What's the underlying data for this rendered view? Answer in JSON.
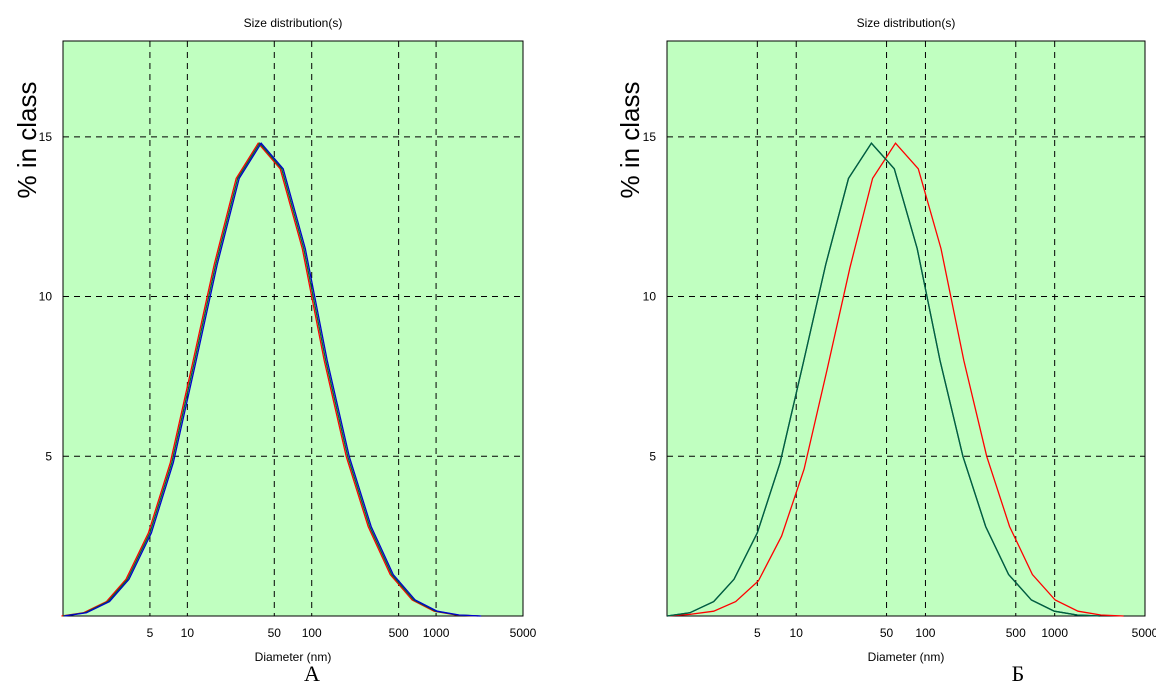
{
  "chart_data": [
    {
      "type": "line",
      "panel_label": "А",
      "title": "Size distribution(s)",
      "xlabel": "Diameter (nm)",
      "ylabel": "% in class",
      "xscale": "log",
      "xlim": [
        1,
        5000
      ],
      "ylim": [
        0,
        18
      ],
      "x_ticks": [
        5,
        10,
        50,
        100,
        500,
        1000,
        5000
      ],
      "y_ticks": [
        5,
        10,
        15
      ],
      "x_grid": [
        5,
        10,
        50,
        100,
        500,
        1000
      ],
      "y_grid": [
        5,
        10,
        15
      ],
      "grid": true,
      "background_color": "#c0ffc0",
      "series": [
        {
          "color": "#ff0000",
          "x": [
            1,
            1.5,
            2.3,
            3.3,
            5,
            7.5,
            11.3,
            16.9,
            25.4,
            38.2,
            57.4,
            86.3,
            129.6,
            194.8,
            292.7,
            440,
            661,
            993,
            1493,
            2243
          ],
          "y": [
            0.0,
            0.1,
            0.45,
            1.15,
            2.6,
            4.8,
            7.9,
            11.0,
            13.7,
            14.8,
            14.0,
            11.5,
            8.0,
            5.0,
            2.8,
            1.3,
            0.5,
            0.15,
            0.03,
            0.0
          ]
        },
        {
          "color": "#006633",
          "x": [
            1,
            1.5,
            2.3,
            3.3,
            5,
            7.5,
            11.3,
            16.9,
            25.4,
            38.2,
            57.4,
            86.3,
            129.6,
            194.8,
            292.7,
            440,
            661,
            993,
            1493,
            2243
          ],
          "y": [
            0.0,
            0.1,
            0.45,
            1.15,
            2.6,
            4.8,
            7.9,
            11.0,
            13.7,
            14.8,
            14.0,
            11.5,
            8.0,
            5.0,
            2.8,
            1.3,
            0.5,
            0.15,
            0.03,
            0.0
          ]
        },
        {
          "color": "#0000cc",
          "x": [
            1,
            1.5,
            2.3,
            3.3,
            5,
            7.5,
            11.3,
            16.9,
            25.4,
            38.2,
            57.4,
            86.3,
            129.6,
            194.8,
            292.7,
            440,
            661,
            993,
            1493,
            2243
          ],
          "y": [
            0.0,
            0.1,
            0.45,
            1.15,
            2.6,
            4.8,
            7.9,
            11.0,
            13.7,
            14.8,
            14.0,
            11.5,
            8.0,
            5.0,
            2.8,
            1.3,
            0.5,
            0.15,
            0.03,
            0.0
          ]
        }
      ]
    },
    {
      "type": "line",
      "panel_label": "Б",
      "title": "Size distribution(s)",
      "xlabel": "Diameter (nm)",
      "ylabel": "% in class",
      "xscale": "log",
      "xlim": [
        1,
        5000
      ],
      "ylim": [
        0,
        18
      ],
      "x_ticks": [
        5,
        10,
        50,
        100,
        500,
        1000,
        5000
      ],
      "y_ticks": [
        5,
        10,
        15
      ],
      "x_grid": [
        5,
        10,
        50,
        100,
        500,
        1000
      ],
      "y_grid": [
        5,
        10,
        15
      ],
      "grid": true,
      "background_color": "#c0ffc0",
      "series": [
        {
          "color": "#ff0000",
          "x": [
            1,
            1.5,
            2.3,
            3.4,
            5.1,
            7.7,
            11.5,
            17.3,
            26,
            39,
            58.6,
            88,
            132,
            198,
            298,
            448,
            672,
            1009,
            1515,
            2274,
            3413
          ],
          "y": [
            0.0,
            0.05,
            0.15,
            0.45,
            1.1,
            2.5,
            4.6,
            7.7,
            10.9,
            13.7,
            14.8,
            14.0,
            11.5,
            8.0,
            5.0,
            2.8,
            1.3,
            0.5,
            0.15,
            0.03,
            0.0
          ]
        },
        {
          "color": "#0000cc",
          "x": [
            1,
            1.5,
            2.3,
            3.3,
            5,
            7.5,
            11.3,
            16.9,
            25.4,
            38.2,
            57.4,
            86.3,
            129.6,
            194.8,
            292.7,
            440,
            661,
            993,
            1493,
            2243
          ],
          "y": [
            0.0,
            0.1,
            0.45,
            1.15,
            2.6,
            4.8,
            7.9,
            11.0,
            13.7,
            14.8,
            14.0,
            11.5,
            8.0,
            5.0,
            2.8,
            1.3,
            0.5,
            0.15,
            0.03,
            0.0
          ]
        },
        {
          "color": "#006633",
          "x": [
            1,
            1.5,
            2.3,
            3.3,
            5,
            7.5,
            11.3,
            16.9,
            25.4,
            38.2,
            57.4,
            86.3,
            129.6,
            194.8,
            292.7,
            440,
            661,
            993,
            1493,
            2243
          ],
          "y": [
            0.0,
            0.1,
            0.45,
            1.15,
            2.6,
            4.8,
            7.9,
            11.0,
            13.7,
            14.8,
            14.0,
            11.5,
            8.0,
            5.0,
            2.8,
            1.3,
            0.5,
            0.15,
            0.03,
            0.0
          ]
        }
      ]
    }
  ]
}
